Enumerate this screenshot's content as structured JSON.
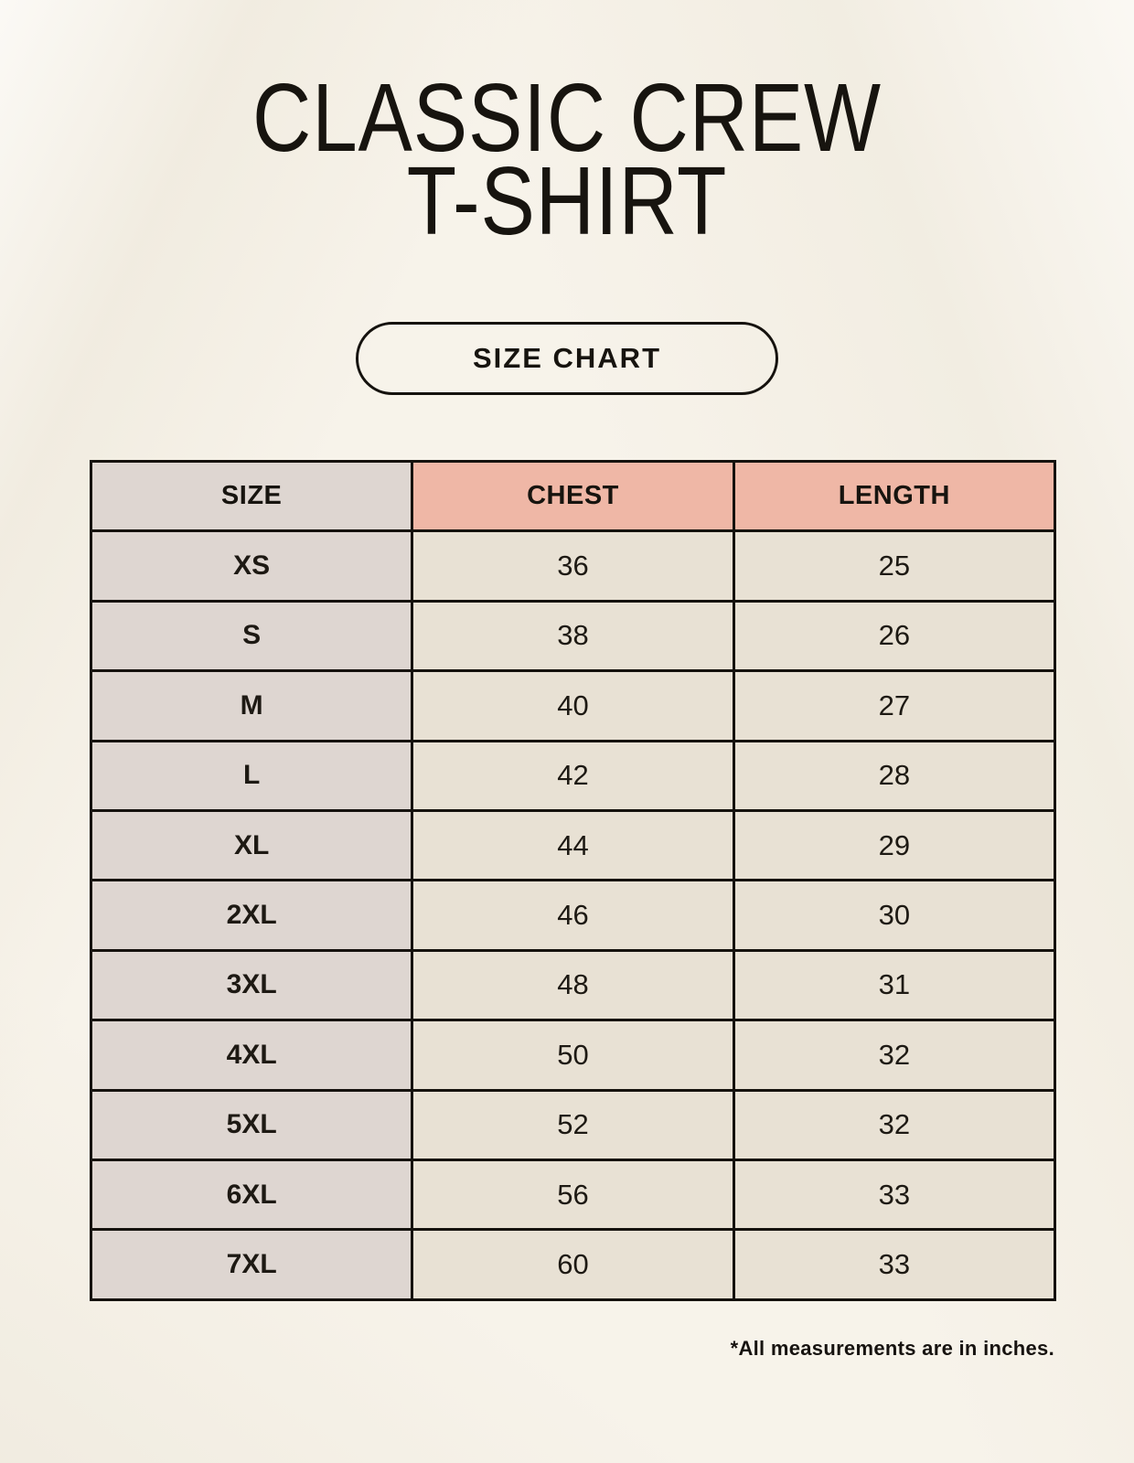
{
  "header": {
    "title_line1": "CLASSIC CREW",
    "title_line2": "T-SHIRT",
    "button_label": "SIZE CHART"
  },
  "footer": {
    "note": "*All measurements are in inches."
  },
  "colors": {
    "bg": "#f7f3ea",
    "accent": "#efb7a6",
    "taupe": "#ded6d1",
    "cell": "#e8e1d4",
    "border": "#15120e"
  },
  "chart_data": {
    "type": "table",
    "title": "Classic Crew T-Shirt Size Chart",
    "units": "inches",
    "columns": [
      "SIZE",
      "CHEST",
      "LENGTH"
    ],
    "rows": [
      [
        "XS",
        "36",
        "25"
      ],
      [
        "S",
        "38",
        "26"
      ],
      [
        "M",
        "40",
        "27"
      ],
      [
        "L",
        "42",
        "28"
      ],
      [
        "XL",
        "44",
        "29"
      ],
      [
        "2XL",
        "46",
        "30"
      ],
      [
        "3XL",
        "48",
        "31"
      ],
      [
        "4XL",
        "50",
        "32"
      ],
      [
        "5XL",
        "52",
        "32"
      ],
      [
        "6XL",
        "56",
        "33"
      ],
      [
        "7XL",
        "60",
        "33"
      ]
    ]
  }
}
